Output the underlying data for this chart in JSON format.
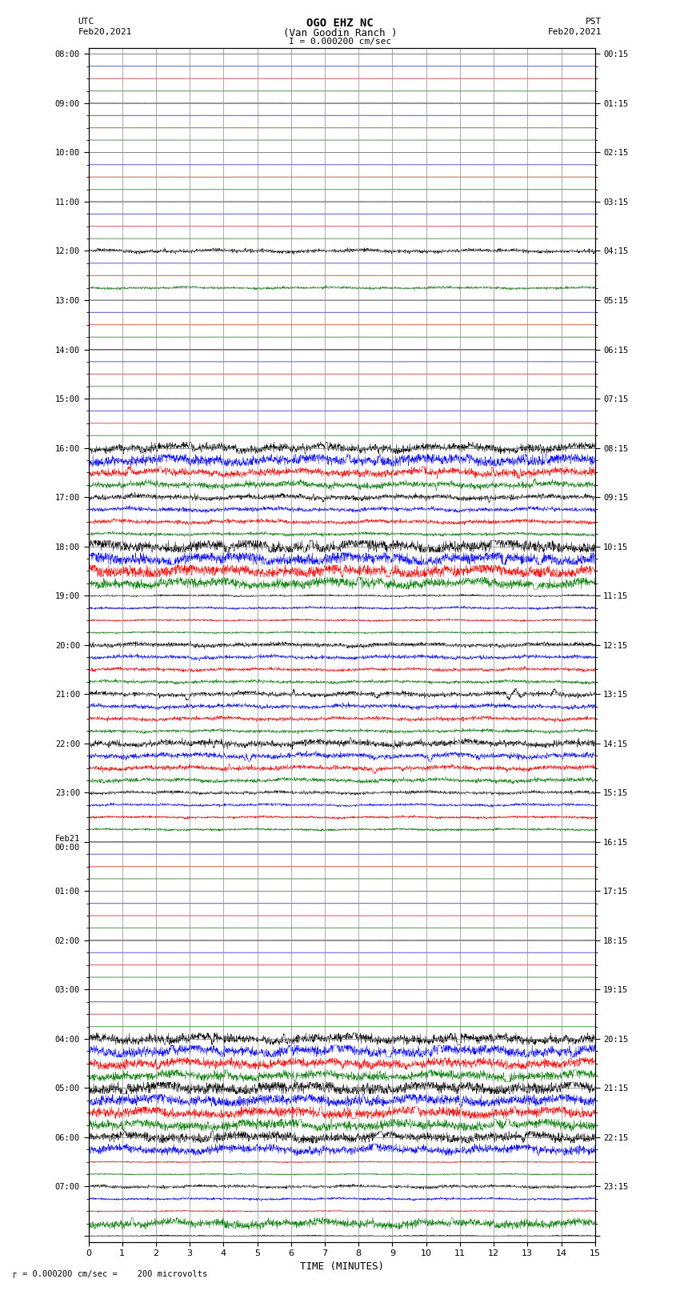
{
  "title_line1": "OGO EHZ NC",
  "title_line2": "(Van Goodin Ranch )",
  "title_line3": "I = 0.000200 cm/sec",
  "left_label_line1": "UTC",
  "left_label_line2": "Feb20,2021",
  "right_label_line1": "PST",
  "right_label_line2": "Feb20,2021",
  "bottom_xlabel": "TIME (MINUTES)",
  "bottom_note": "= 0.000200 cm/sec =    200 microvolts",
  "xlim": [
    0,
    15
  ],
  "xticks": [
    0,
    1,
    2,
    3,
    4,
    5,
    6,
    7,
    8,
    9,
    10,
    11,
    12,
    13,
    14,
    15
  ],
  "figure_width": 8.5,
  "figure_height": 16.13,
  "dpi": 100,
  "background_color": "#ffffff",
  "grid_color": "#888888",
  "trace_color_cycle": [
    "black",
    "blue",
    "red",
    "green"
  ],
  "utc_labels": [
    "08:00",
    "09:00",
    "10:00",
    "11:00",
    "12:00",
    "13:00",
    "14:00",
    "15:00",
    "16:00",
    "17:00",
    "18:00",
    "19:00",
    "20:00",
    "21:00",
    "22:00",
    "23:00",
    "Feb21\n00:00",
    "01:00",
    "02:00",
    "03:00",
    "04:00",
    "05:00",
    "06:00",
    "07:00"
  ],
  "pst_labels": [
    "00:15",
    "01:15",
    "02:15",
    "03:15",
    "04:15",
    "05:15",
    "06:15",
    "07:15",
    "08:15",
    "09:15",
    "10:15",
    "11:15",
    "12:15",
    "13:15",
    "14:15",
    "15:15",
    "16:15",
    "17:15",
    "18:15",
    "19:15",
    "20:15",
    "21:15",
    "22:15",
    "23:15"
  ],
  "n_rows": 97,
  "row_amplitude": [
    0.003,
    0.003,
    0.003,
    0.003,
    0.003,
    0.003,
    0.003,
    0.003,
    0.003,
    0.003,
    0.003,
    0.003,
    0.003,
    0.003,
    0.003,
    0.003,
    0.12,
    0.003,
    0.003,
    0.003,
    0.08,
    0.003,
    0.003,
    0.003,
    0.003,
    0.003,
    0.003,
    0.003,
    0.003,
    0.003,
    0.003,
    0.003,
    0.55,
    0.45,
    0.35,
    0.3,
    0.28,
    0.22,
    0.18,
    0.15,
    0.5,
    0.45,
    0.4,
    0.38,
    0.08,
    0.07,
    0.06,
    0.06,
    0.25,
    0.22,
    0.2,
    0.18,
    0.18,
    0.16,
    0.15,
    0.14,
    0.28,
    0.25,
    0.22,
    0.2,
    0.15,
    0.13,
    0.12,
    0.11,
    0.003,
    0.003,
    0.003,
    0.003,
    0.003,
    0.003,
    0.003,
    0.003,
    0.003,
    0.003,
    0.003,
    0.003,
    0.003,
    0.003,
    0.003,
    0.003,
    0.5,
    0.45,
    0.4,
    0.38,
    0.55,
    0.5,
    0.45,
    0.4,
    0.45,
    0.4,
    0.03,
    0.03,
    0.15,
    0.1,
    0.05,
    0.4,
    0.05
  ]
}
